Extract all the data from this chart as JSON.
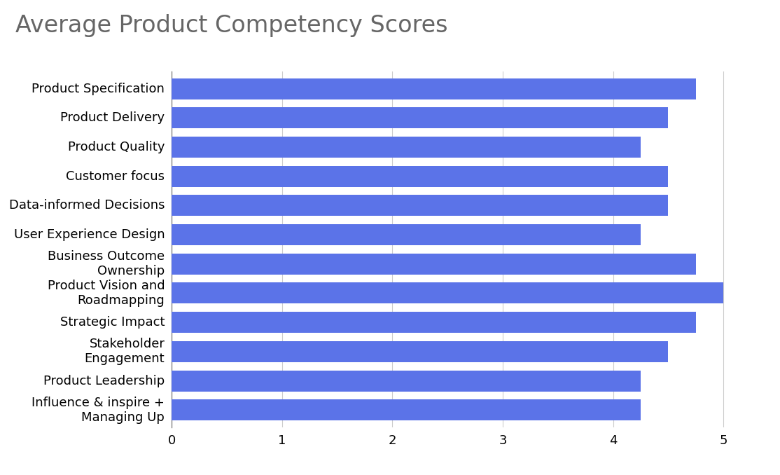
{
  "title": "Average Product Competency Scores",
  "categories": [
    "Product Specification",
    "Product Delivery",
    "Product Quality",
    "Customer focus",
    "Data-informed Decisions",
    "User Experience Design",
    "Business Outcome\nOwnership",
    "Product Vision and\nRoadmapping",
    "Strategic Impact",
    "Stakeholder\nEngagement",
    "Product Leadership",
    "Influence & inspire +\nManaging Up"
  ],
  "values": [
    4.75,
    4.5,
    4.25,
    4.5,
    4.5,
    4.25,
    4.75,
    5.0,
    4.75,
    4.5,
    4.25,
    4.25
  ],
  "bar_color": "#5B73E8",
  "xlim": [
    0,
    5.3
  ],
  "xticks": [
    0,
    1,
    2,
    3,
    4,
    5
  ],
  "title_fontsize": 24,
  "label_fontsize": 13,
  "tick_fontsize": 13,
  "background_color": "#ffffff",
  "grid_color": "#cccccc",
  "title_color": "#666666",
  "label_color": "#000000"
}
